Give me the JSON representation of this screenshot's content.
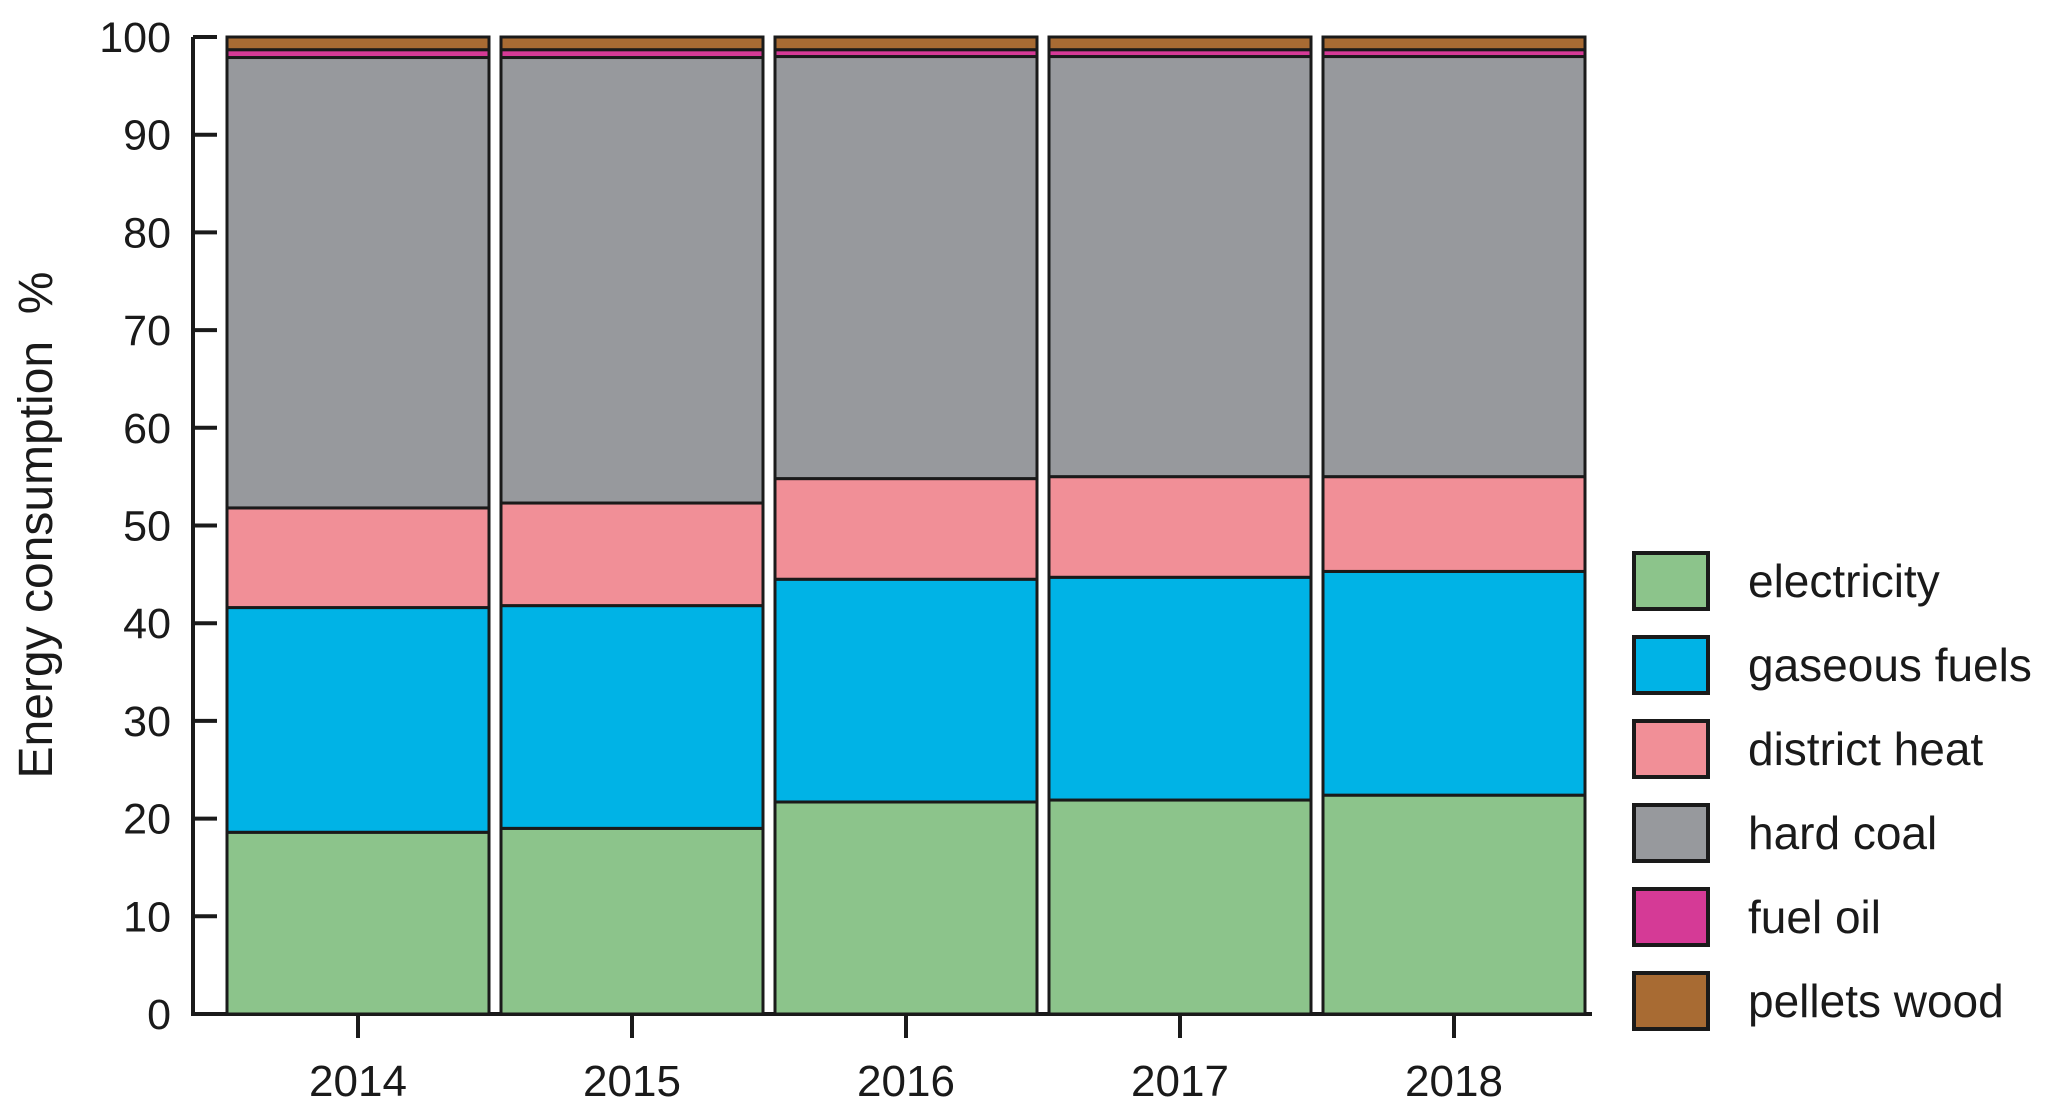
{
  "chart_data": {
    "type": "bar",
    "stacked": true,
    "title": "",
    "xlabel": "",
    "ylabel": "Energy consumption  %",
    "ylim": [
      0,
      100
    ],
    "grid": false,
    "legend_position": "right",
    "outline_color": "#1A1A1A",
    "y_ticks": [
      "0",
      "10",
      "20",
      "30",
      "40",
      "50",
      "60",
      "70",
      "80",
      "90",
      "100"
    ],
    "categories": [
      "2014",
      "2015",
      "2016",
      "2017",
      "2018"
    ],
    "series": [
      {
        "name": "electricity",
        "color": "#8CC48B",
        "values": [
          18.6,
          19.0,
          21.7,
          21.9,
          22.4
        ]
      },
      {
        "name": "gaseous fuels",
        "color": "#00B3E6",
        "values": [
          23.0,
          22.8,
          22.8,
          22.8,
          22.9
        ]
      },
      {
        "name": "district heat",
        "color": "#F18F97",
        "values": [
          10.2,
          10.5,
          10.3,
          10.3,
          9.7
        ]
      },
      {
        "name": "hard coal",
        "color": "#97999D",
        "values": [
          46.1,
          45.6,
          43.2,
          43.0,
          43.0
        ]
      },
      {
        "name": "fuel oil",
        "color": "#D53A96",
        "values": [
          0.8,
          0.8,
          0.7,
          0.7,
          0.7
        ]
      },
      {
        "name": "pellets wood",
        "color": "#A86B33",
        "values": [
          1.3,
          1.3,
          1.3,
          1.3,
          1.3
        ]
      }
    ]
  }
}
